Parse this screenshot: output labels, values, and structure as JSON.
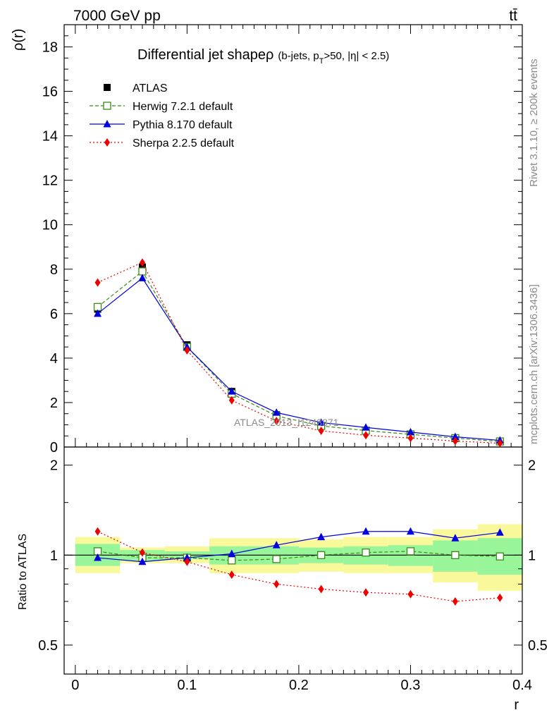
{
  "header": {
    "energy_label": "7000 GeV pp",
    "process_label": "tt̄"
  },
  "side_labels": {
    "rivet": "Rivet 3.1.10, ≥ 200k events",
    "mcplots": "mcplots.cern.ch [arXiv:1306.3436]"
  },
  "chart_data": [
    {
      "type": "line",
      "title": "Differential jet shapeρ",
      "title_suffix": "(b-jets, p_T>50, |η| < 2.5)",
      "xlabel": "r",
      "ylabel": "ρ(r)",
      "watermark": "ATLAS_2013_I1243871",
      "xlim": [
        -0.01,
        0.4
      ],
      "ylim": [
        0,
        19
      ],
      "yticks": [
        0,
        2,
        4,
        6,
        8,
        10,
        12,
        14,
        16,
        18
      ],
      "ytick_labels": [
        "0",
        "2",
        "4",
        "6",
        "8",
        "10",
        "12",
        "14",
        "16",
        "18"
      ],
      "legend_position": "top-left",
      "x": [
        0.02,
        0.06,
        0.1,
        0.14,
        0.18,
        0.22,
        0.26,
        0.3,
        0.34,
        0.38
      ],
      "series": [
        {
          "name": "ATLAS",
          "color": "#000000",
          "marker": "square",
          "values": [
            6.2,
            8.1,
            4.6,
            2.5,
            1.45,
            0.95,
            0.72,
            0.55,
            0.4,
            0.25
          ]
        },
        {
          "name": "Herwig 7.2.1 default",
          "color": "#3a8a16",
          "marker": "open-square",
          "dash": "5,3",
          "values": [
            6.3,
            7.9,
            4.5,
            2.4,
            1.4,
            0.95,
            0.74,
            0.57,
            0.4,
            0.25
          ]
        },
        {
          "name": "Pythia 8.170 default",
          "color": "#0000dd",
          "marker": "triangle",
          "values": [
            6.0,
            7.6,
            4.5,
            2.5,
            1.55,
            1.1,
            0.88,
            0.67,
            0.46,
            0.3
          ]
        },
        {
          "name": "Sherpa 2.2.5 default",
          "color": "#ee0000",
          "marker": "diamond",
          "dash": "2,3",
          "values": [
            7.4,
            8.3,
            4.35,
            2.1,
            1.17,
            0.73,
            0.53,
            0.4,
            0.27,
            0.17
          ]
        }
      ]
    },
    {
      "type": "line",
      "ylabel": "Ratio to ATLAS",
      "xlabel": "r",
      "ylim": [
        0.4,
        2.3
      ],
      "y_scale": "log",
      "yticks": [
        0.5,
        1,
        2
      ],
      "ytick_labels": [
        "0.5",
        "1",
        "2"
      ],
      "xticks": [
        0,
        0.1,
        0.2,
        0.3,
        0.4
      ],
      "xtick_labels": [
        "0",
        "0.1",
        "0.2",
        "0.3",
        "0.4"
      ],
      "x": [
        0.02,
        0.06,
        0.1,
        0.14,
        0.18,
        0.22,
        0.26,
        0.3,
        0.34,
        0.38
      ],
      "uncertainty_bins": [
        0.0,
        0.04,
        0.08,
        0.12,
        0.16,
        0.2,
        0.24,
        0.28,
        0.32,
        0.36,
        0.4
      ],
      "band_stat": [
        [
          0.92,
          1.09
        ],
        [
          0.96,
          1.04
        ],
        [
          0.97,
          1.03
        ],
        [
          0.93,
          1.07
        ],
        [
          0.93,
          1.07
        ],
        [
          0.94,
          1.06
        ],
        [
          0.93,
          1.07
        ],
        [
          0.92,
          1.08
        ],
        [
          0.88,
          1.12
        ],
        [
          0.86,
          1.14
        ]
      ],
      "band_total": [
        [
          0.87,
          1.15
        ],
        [
          0.94,
          1.06
        ],
        [
          0.94,
          1.07
        ],
        [
          0.87,
          1.14
        ],
        [
          0.87,
          1.14
        ],
        [
          0.88,
          1.13
        ],
        [
          0.87,
          1.15
        ],
        [
          0.87,
          1.15
        ],
        [
          0.81,
          1.22
        ],
        [
          0.76,
          1.27
        ]
      ],
      "band_stat_color": "#99f599",
      "band_total_color": "#f9f99c",
      "series": [
        {
          "name": "Herwig 7.2.1 default",
          "color": "#3a8a16",
          "marker": "open-square",
          "dash": "5,3",
          "values": [
            1.03,
            0.98,
            0.98,
            0.96,
            0.97,
            1.0,
            1.02,
            1.03,
            1.0,
            0.99
          ]
        },
        {
          "name": "Pythia 8.170 default",
          "color": "#0000dd",
          "marker": "triangle",
          "values": [
            0.98,
            0.95,
            0.98,
            1.01,
            1.08,
            1.15,
            1.2,
            1.2,
            1.14,
            1.19
          ]
        },
        {
          "name": "Sherpa 2.2.5 default",
          "color": "#ee0000",
          "marker": "diamond",
          "dash": "2,3",
          "values": [
            1.2,
            1.02,
            0.95,
            0.86,
            0.8,
            0.77,
            0.75,
            0.74,
            0.7,
            0.72
          ]
        }
      ]
    }
  ]
}
